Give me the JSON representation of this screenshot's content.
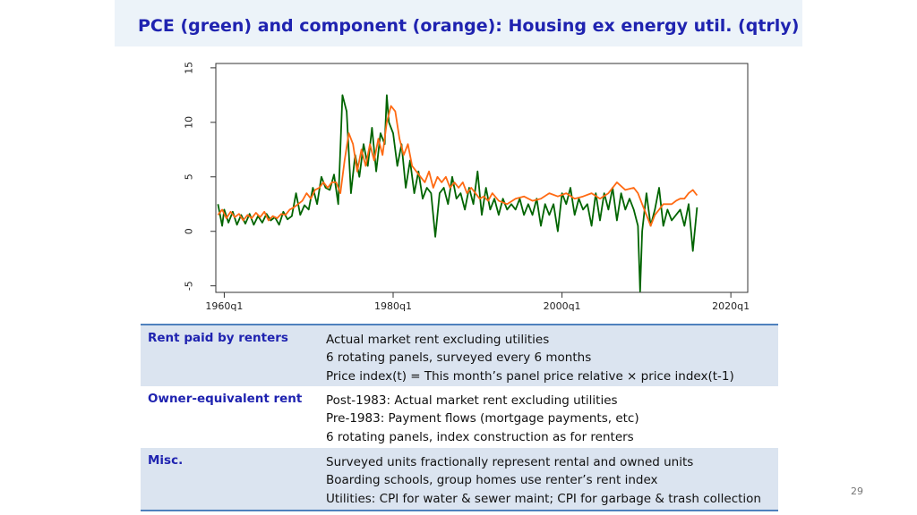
{
  "slide": {
    "title": "PCE (green) and component (orange): Housing ex energy util. (qtrly)",
    "page_number": "29"
  },
  "colors": {
    "title": "#1f23b0",
    "pce_line": "#006400",
    "component_line": "#ff6a13",
    "table_band": "#dbe4f0",
    "table_rule": "#4f81bd"
  },
  "chart_data": {
    "type": "line",
    "title": "",
    "xlabel": "",
    "ylabel": "",
    "x_ticks": [
      "1960q1",
      "1980q1",
      "2000q1",
      "2020q1"
    ],
    "x_tick_years": [
      1960,
      1980,
      2000,
      2020
    ],
    "y_ticks": [
      "15",
      "10",
      "5",
      "0",
      "-5"
    ],
    "y_tick_values": [
      15,
      10,
      5,
      0,
      -5
    ],
    "xlim": [
      1959,
      2022
    ],
    "ylim": [
      -5.6,
      15.4
    ],
    "grid": false,
    "legend": "none",
    "series": [
      {
        "color": "green",
        "x": [
          1959.25,
          1959.75,
          1960.0,
          1960.5,
          1961.0,
          1961.5,
          1962.0,
          1962.5,
          1963.0,
          1963.5,
          1964.0,
          1964.5,
          1965.0,
          1965.5,
          1966.0,
          1966.5,
          1967.0,
          1967.5,
          1968.0,
          1968.5,
          1969.0,
          1969.5,
          1970.0,
          1970.5,
          1971.0,
          1971.5,
          1972.0,
          1972.5,
          1973.0,
          1973.5,
          1974.0,
          1974.5,
          1975.0,
          1975.5,
          1976.0,
          1976.5,
          1977.0,
          1977.5,
          1978.0,
          1978.5,
          1979.0,
          1979.25,
          1979.5,
          1980.0,
          1980.5,
          1981.0,
          1981.5,
          1982.0,
          1982.5,
          1983.0,
          1983.5,
          1984.0,
          1984.5,
          1985.0,
          1985.5,
          1986.0,
          1986.5,
          1987.0,
          1987.5,
          1988.0,
          1988.5,
          1989.0,
          1989.5,
          1990.0,
          1990.5,
          1991.0,
          1991.5,
          1992.0,
          1992.5,
          1993.0,
          1993.5,
          1994.0,
          1994.5,
          1995.0,
          1995.5,
          1996.0,
          1996.5,
          1997.0,
          1997.5,
          1998.0,
          1998.5,
          1999.0,
          1999.5,
          2000.0,
          2000.5,
          2001.0,
          2001.5,
          2002.0,
          2002.5,
          2003.0,
          2003.5,
          2004.0,
          2004.5,
          2005.0,
          2005.5,
          2006.0,
          2006.5,
          2007.0,
          2007.5,
          2008.0,
          2008.5,
          2009.0,
          2009.25,
          2009.5,
          2010.0,
          2010.5,
          2011.0,
          2011.5,
          2012.0,
          2012.5,
          2013.0,
          2013.5,
          2014.0,
          2014.5,
          2015.0,
          2015.5,
          2016.0
        ],
        "y": [
          2.5,
          0.5,
          2.0,
          0.8,
          1.8,
          0.6,
          1.5,
          0.7,
          1.6,
          0.6,
          1.4,
          0.8,
          1.6,
          1.0,
          1.3,
          0.6,
          1.8,
          1.1,
          1.4,
          3.5,
          1.5,
          2.4,
          2.0,
          4.0,
          2.5,
          5.0,
          4.0,
          3.8,
          5.2,
          2.5,
          12.5,
          11.0,
          3.5,
          7.0,
          5.0,
          8.0,
          6.0,
          9.5,
          5.5,
          9.0,
          8.0,
          12.5,
          10.0,
          9.0,
          6.0,
          8.0,
          4.0,
          6.5,
          3.5,
          5.5,
          3.0,
          4.0,
          3.5,
          -0.5,
          3.5,
          4.0,
          2.5,
          5.0,
          3.0,
          3.5,
          2.0,
          4.0,
          2.5,
          5.5,
          1.5,
          4.0,
          2.0,
          3.0,
          1.5,
          3.0,
          2.0,
          2.5,
          2.0,
          3.0,
          1.5,
          2.5,
          1.5,
          3.0,
          0.5,
          2.5,
          1.5,
          2.5,
          0.0,
          3.5,
          2.5,
          4.0,
          1.5,
          3.0,
          2.0,
          2.5,
          0.5,
          3.5,
          1.0,
          3.5,
          2.0,
          4.0,
          1.0,
          3.5,
          2.0,
          3.0,
          2.0,
          0.5,
          -5.5,
          0.0,
          3.5,
          0.5,
          2.0,
          4.0,
          0.5,
          2.0,
          1.0,
          1.5,
          2.0,
          0.5,
          2.5,
          -1.8,
          2.2
        ]
      },
      {
        "color": "orange",
        "x": [
          1959.25,
          1959.75,
          1960.25,
          1960.75,
          1961.25,
          1961.75,
          1962.25,
          1962.75,
          1963.25,
          1963.75,
          1964.25,
          1964.75,
          1965.25,
          1965.75,
          1966.25,
          1966.75,
          1967.25,
          1967.75,
          1968.25,
          1968.75,
          1969.25,
          1969.75,
          1970.25,
          1970.75,
          1971.25,
          1971.75,
          1972.25,
          1972.75,
          1973.25,
          1973.75,
          1974.25,
          1974.75,
          1975.25,
          1975.75,
          1976.25,
          1976.75,
          1977.25,
          1977.75,
          1978.25,
          1978.75,
          1979.25,
          1979.75,
          1980.25,
          1980.75,
          1981.25,
          1981.75,
          1982.25,
          1982.75,
          1983.25,
          1983.75,
          1984.25,
          1984.75,
          1985.25,
          1985.75,
          1986.25,
          1986.75,
          1987.25,
          1987.75,
          1988.25,
          1988.75,
          1989.25,
          1989.75,
          1990.25,
          1990.75,
          1991.25,
          1991.75,
          1992.5,
          1993.5,
          1994.5,
          1995.5,
          1996.5,
          1997.5,
          1998.5,
          1999.5,
          2000.5,
          2001.5,
          2002.5,
          2003.5,
          2004.5,
          2005.5,
          2006.5,
          2007.5,
          2008.5,
          2009.0,
          2009.5,
          2010.0,
          2010.5,
          2011.0,
          2011.5,
          2012.0,
          2012.5,
          2013.0,
          2013.5,
          2014.0,
          2014.5,
          2015.0,
          2015.5,
          2016.0
        ],
        "y": [
          1.5,
          2.0,
          1.2,
          1.8,
          1.3,
          1.6,
          1.0,
          1.5,
          1.2,
          1.7,
          1.3,
          1.8,
          1.0,
          1.4,
          1.2,
          1.6,
          1.5,
          2.0,
          2.2,
          2.5,
          2.8,
          3.5,
          3.0,
          3.8,
          4.0,
          4.5,
          4.0,
          4.5,
          4.5,
          3.5,
          6.5,
          9.0,
          8.0,
          5.5,
          7.5,
          6.0,
          8.0,
          6.5,
          8.5,
          7.0,
          10.0,
          11.5,
          11.0,
          8.5,
          7.0,
          8.0,
          6.0,
          5.5,
          5.0,
          4.5,
          5.5,
          4.0,
          5.0,
          4.5,
          5.0,
          4.0,
          4.5,
          4.0,
          4.5,
          3.5,
          4.0,
          3.5,
          3.0,
          3.2,
          2.8,
          3.5,
          2.8,
          2.5,
          3.0,
          3.2,
          2.8,
          3.0,
          3.5,
          3.2,
          3.5,
          3.0,
          3.2,
          3.5,
          3.0,
          3.5,
          4.5,
          3.8,
          4.0,
          3.5,
          2.5,
          1.5,
          0.5,
          1.5,
          2.0,
          2.5,
          2.5,
          2.5,
          2.8,
          3.0,
          3.0,
          3.5,
          3.8,
          3.3
        ]
      }
    ]
  },
  "table": {
    "rows": [
      {
        "label": "Rent paid by renters",
        "lines": [
          "Actual market rent excluding utilities",
          "6 rotating panels, surveyed every 6 months",
          "Price index(t) = This month’s panel price relative × price index(t-1)"
        ]
      },
      {
        "label": "Owner-equivalent rent",
        "lines": [
          "Post-1983: Actual market rent excluding utilities",
          "Pre-1983: Payment flows (mortgage payments, etc)",
          "6 rotating panels, index construction as for renters"
        ]
      },
      {
        "label": "Misc.",
        "lines": [
          "Surveyed units fractionally represent rental and owned units",
          "Boarding schools, group homes use renter’s rent index",
          "Utilities: CPI for water & sewer maint; CPI for garbage & trash collection"
        ]
      }
    ]
  }
}
